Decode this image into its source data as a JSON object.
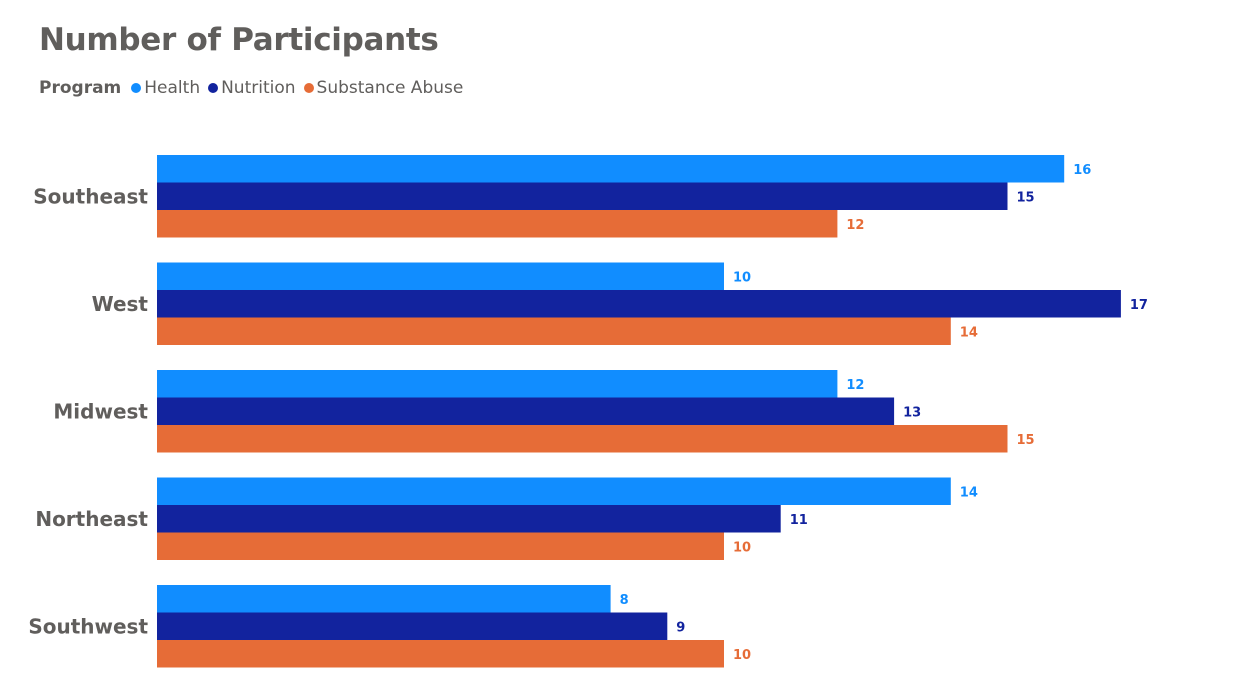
{
  "chart_data": {
    "type": "bar",
    "orientation": "horizontal",
    "title": "Number of Participants",
    "legend_title": "Program",
    "legend_placement": "top-left",
    "categories": [
      "Southeast",
      "West",
      "Midwest",
      "Northeast",
      "Southwest"
    ],
    "series": [
      {
        "name": "Health",
        "color": "#118dff",
        "values": [
          16,
          10,
          12,
          14,
          8
        ]
      },
      {
        "name": "Nutrition",
        "color": "#12239e",
        "values": [
          15,
          17,
          13,
          11,
          9
        ]
      },
      {
        "name": "Substance Abuse",
        "color": "#e66c37",
        "values": [
          12,
          14,
          15,
          10,
          10
        ]
      }
    ],
    "xlim": [
      0,
      17
    ],
    "grid": false,
    "data_labels": true
  }
}
